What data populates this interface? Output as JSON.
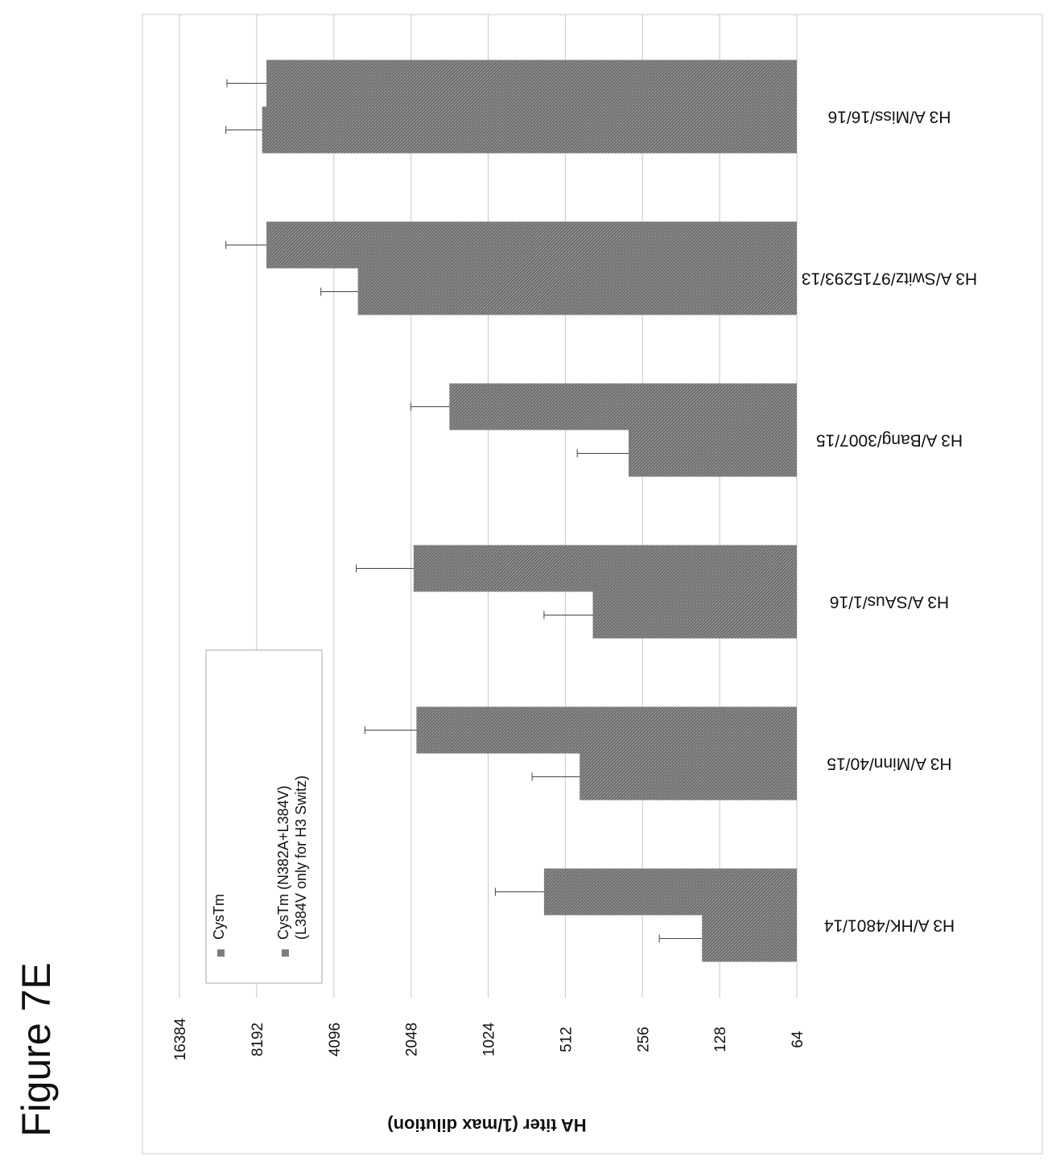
{
  "figure_label": "Figure 7E",
  "colors": {
    "bar_fill": "#6e6e6e",
    "bar_hatch": "#9a9a9a",
    "grid": "#c8c8c8",
    "error_bar": "#444444"
  },
  "chart_data": {
    "type": "bar",
    "orientation": "rotated-90-clockwise",
    "title": "",
    "ylabel": "HA titer (1/max dilution)",
    "xlabel": "",
    "y_scale": "log2",
    "ylim": [
      64,
      16384
    ],
    "y_ticks": [
      "16384",
      "8192",
      "4096",
      "2048",
      "1024",
      "512",
      "256",
      "128",
      "64"
    ],
    "grid": true,
    "legend_position": "left",
    "categories": [
      "H3 A/HK/4801/14",
      "H3 A/Minn/40/15",
      "H3 A/SAus/1/16",
      "H3 A/Bang/3007/15",
      "H3 A/Switz/9715293/13",
      "H3 A/Miss/16/16"
    ],
    "series": [
      {
        "name": "CysTm",
        "values": [
          150,
          450,
          400,
          290,
          3300,
          7800
        ],
        "errors": [
          70,
          240,
          220,
          170,
          1300,
          3000
        ]
      },
      {
        "name": "CysTm (N382A+L384V) (L384V only for H3 Switz)",
        "values": [
          620,
          1950,
          2000,
          1450,
          7500,
          7500
        ],
        "errors": [
          340,
          1150,
          1350,
          600,
          3300,
          3200
        ]
      }
    ]
  }
}
